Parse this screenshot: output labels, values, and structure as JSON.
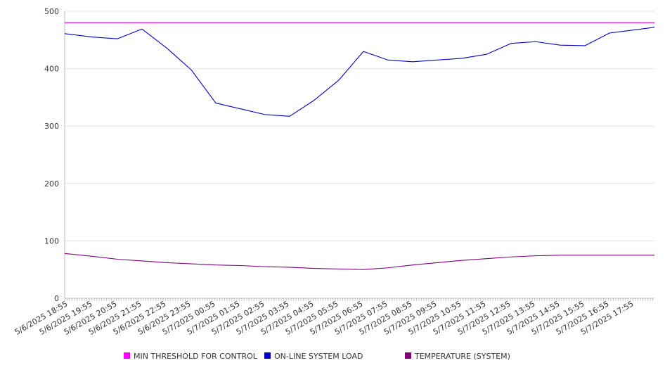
{
  "chart_data": {
    "type": "line",
    "title": "",
    "xlabel": "",
    "ylabel": "",
    "ylim": [
      0,
      500
    ],
    "y_ticks": [
      0,
      100,
      200,
      300,
      400,
      500
    ],
    "grid": "horizontal",
    "legend_placement": "bottom",
    "x_tick_labels": [
      "5/6/2025 18:55",
      "5/6/2025 19:55",
      "5/6/2025 20:55",
      "5/6/2025 21:55",
      "5/6/2025 22:55",
      "5/6/2025 23:55",
      "5/7/2025 00:55",
      "5/7/2025 01:55",
      "5/7/2025 02:55",
      "5/7/2025 03:55",
      "5/7/2025 04:55",
      "5/7/2025 05:55",
      "5/7/2025 06:55",
      "5/7/2025 07:55",
      "5/7/2025 08:55",
      "5/7/2025 09:55",
      "5/7/2025 10:55",
      "5/7/2025 11:55",
      "5/7/2025 12:55",
      "5/7/2025 13:55",
      "5/7/2025 14:55",
      "5/7/2025 15:55",
      "5/7/2025 16:55",
      "5/7/2025 17:55"
    ],
    "x": [
      "5/6/2025 18:55",
      "5/6/2025 19:55",
      "5/6/2025 20:55",
      "5/6/2025 21:55",
      "5/6/2025 22:55",
      "5/6/2025 23:55",
      "5/7/2025 00:55",
      "5/7/2025 01:55",
      "5/7/2025 02:55",
      "5/7/2025 03:55",
      "5/7/2025 04:55",
      "5/7/2025 05:55",
      "5/7/2025 06:55",
      "5/7/2025 07:55",
      "5/7/2025 08:55",
      "5/7/2025 09:55",
      "5/7/2025 10:55",
      "5/7/2025 11:55",
      "5/7/2025 12:55",
      "5/7/2025 13:55",
      "5/7/2025 14:55",
      "5/7/2025 15:55",
      "5/7/2025 16:55",
      "5/7/2025 17:55"
    ],
    "series": [
      {
        "name": "MIN THRESHOLD FOR CONTROL",
        "color": "#cc00cc",
        "values": [
          480,
          480,
          480,
          480,
          480,
          480,
          480,
          480,
          480,
          480,
          480,
          480,
          480,
          480,
          480,
          480,
          480,
          480,
          480,
          480,
          480,
          480,
          480,
          480
        ]
      },
      {
        "name": "ON-LINE SYSTEM LOAD",
        "color": "#0000cc",
        "values": [
          461,
          455,
          452,
          469,
          436,
          398,
          340,
          330,
          320,
          317,
          345,
          380,
          430,
          415,
          412,
          415,
          418,
          425,
          444,
          447,
          441,
          440,
          462,
          472
        ]
      },
      {
        "name": "TEMPERATURE (SYSTEM)",
        "color": "#800080",
        "values": [
          78,
          73,
          68,
          65,
          62,
          60,
          58,
          57,
          55,
          54,
          52,
          51,
          50,
          53,
          58,
          62,
          66,
          69,
          72,
          74,
          75,
          75,
          75,
          75
        ]
      }
    ]
  }
}
